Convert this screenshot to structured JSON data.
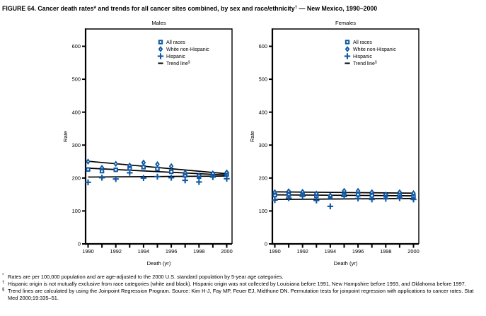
{
  "title": {
    "main": "FIGURE 64. Cancer death rates* and trends for all cancer sites combined, by sex and race/ethnicity",
    "sup": "†",
    "tail": " — New Mexico, 1990–2000"
  },
  "colors": {
    "marker_blue": "#1058A4",
    "trend_black": "#000000",
    "background": "#FFFFFF"
  },
  "legend": {
    "items": [
      {
        "label": "All races",
        "marker": "square"
      },
      {
        "label": "White non-Hispanic",
        "marker": "diamond"
      },
      {
        "label": "Hispanic",
        "marker": "plus"
      },
      {
        "label": "Trend line",
        "sup": "§",
        "marker": "dash"
      }
    ]
  },
  "axes": {
    "xlabel": "Death (yr)",
    "ylabel": "Rate",
    "ylim": [
      0,
      600
    ],
    "yticks": [
      0,
      100,
      200,
      300,
      400,
      500,
      600
    ],
    "xlim": [
      1990,
      2000
    ],
    "xticks": [
      1990,
      1991,
      1992,
      1993,
      1994,
      1995,
      1996,
      1997,
      1998,
      1999,
      2000
    ],
    "xtick_labels": [
      1990,
      1992,
      1994,
      1996,
      1998,
      2000
    ]
  },
  "chart_data": [
    {
      "type": "scatter",
      "title": "Males",
      "x": [
        1990,
        1991,
        1992,
        1993,
        1994,
        1995,
        1996,
        1997,
        1998,
        1999,
        2000
      ],
      "series": [
        {
          "name": "All races",
          "marker": "square",
          "values": [
            226,
            221,
            225,
            229,
            233,
            228,
            219,
            208,
            204,
            210,
            211
          ]
        },
        {
          "name": "White non-Hispanic",
          "marker": "diamond",
          "values": [
            250,
            231,
            243,
            238,
            247,
            242,
            236,
            216,
            208,
            214,
            217
          ]
        },
        {
          "name": "Hispanic",
          "marker": "plus",
          "values": [
            187,
            201,
            197,
            216,
            200,
            204,
            201,
            193,
            188,
            203,
            198
          ]
        }
      ],
      "trend_lines": [
        {
          "series": "All races",
          "start": 230,
          "end": 209
        },
        {
          "series": "White non-Hispanic",
          "start": 251,
          "end": 213
        },
        {
          "series": "Hispanic",
          "start": 203,
          "end": 206
        }
      ]
    },
    {
      "type": "scatter",
      "title": "Females",
      "x": [
        1990,
        1991,
        1992,
        1993,
        1994,
        1995,
        1996,
        1997,
        1998,
        1999,
        2000
      ],
      "series": [
        {
          "name": "All races",
          "marker": "square",
          "values": [
            148,
            149,
            149,
            146,
            143,
            149,
            150,
            147,
            147,
            148,
            144
          ]
        },
        {
          "name": "White non-Hispanic",
          "marker": "diamond",
          "values": [
            157,
            160,
            158,
            153,
            147,
            161,
            161,
            157,
            150,
            157,
            154
          ]
        },
        {
          "name": "Hispanic",
          "marker": "plus",
          "values": [
            133,
            139,
            145,
            132,
            114,
            144,
            138,
            135,
            137,
            139,
            135
          ]
        }
      ],
      "trend_lines": [
        {
          "series": "All races",
          "start": 149,
          "end": 146
        },
        {
          "series": "White non-Hispanic",
          "start": 158,
          "end": 154
        },
        {
          "series": "Hispanic",
          "start": 135,
          "end": 138
        }
      ]
    }
  ],
  "footnotes": [
    {
      "sup": "*",
      "text": "Rates are per 100,000 population and are age-adjusted to the 2000 U.S. standard population by 5-year age categories."
    },
    {
      "sup": "†",
      "text": "Hispanic origin is not mutually exclusive from race categories (white and black). Hispanic origin was not collected by Louisiana before 1991, New Hampshire before 1993, and Oklahoma before 1997."
    },
    {
      "sup": "§",
      "text": "Trend lines are calculated by using the Joinpoint Regression Program. Source: Kim H-J, Fay MP, Feuer EJ, Midthune DN. Permutation tests for joinpoint regression with applications to cancer rates. Stat Med 2000;19:335–51."
    }
  ]
}
